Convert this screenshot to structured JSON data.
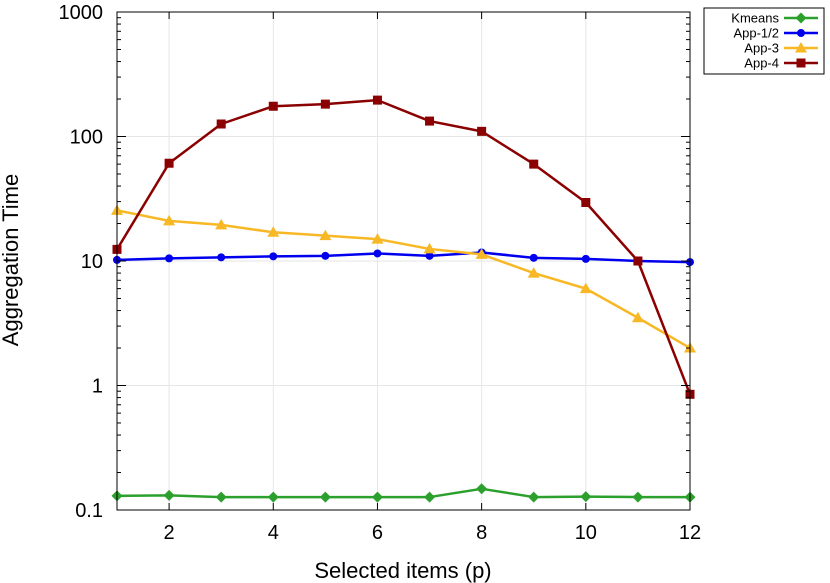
{
  "chart_data": {
    "type": "line",
    "title": "",
    "xlabel": "Selected items (p)",
    "ylabel": "Aggregation Time",
    "x": [
      1,
      2,
      3,
      4,
      5,
      6,
      7,
      8,
      9,
      10,
      11,
      12
    ],
    "xlim": [
      1,
      12
    ],
    "ylim": [
      0.1,
      1000
    ],
    "yscale": "log",
    "x_ticks": [
      2,
      4,
      6,
      8,
      10,
      12
    ],
    "x_tick_labels": [
      "2",
      "4",
      "6",
      "8",
      "10",
      "12"
    ],
    "y_ticks": [
      0.1,
      1,
      10,
      100,
      1000
    ],
    "y_tick_labels": [
      "0.1",
      "1",
      "10",
      "100",
      "1000"
    ],
    "grid": true,
    "legend_position": "top-right outside plot",
    "series": [
      {
        "name": "Kmeans",
        "color": "#2ca02c",
        "marker": "diamond",
        "values": [
          0.13,
          0.131,
          0.127,
          0.127,
          0.127,
          0.127,
          0.127,
          0.148,
          0.127,
          0.128,
          0.127,
          0.127
        ]
      },
      {
        "name": "App-1/2",
        "color": "#0000ee",
        "marker": "circle",
        "values": [
          10.2,
          10.5,
          10.7,
          10.9,
          11.0,
          11.5,
          11.0,
          11.7,
          10.6,
          10.4,
          10.0,
          9.8
        ]
      },
      {
        "name": "App-3",
        "color": "#f8b825",
        "marker": "triangle",
        "values": [
          25.5,
          21.0,
          19.5,
          17.0,
          16.0,
          15.0,
          12.5,
          11.3,
          8.0,
          6.0,
          3.5,
          2.0
        ]
      },
      {
        "name": "App-4",
        "color": "#8b0000",
        "marker": "square",
        "values": [
          12.4,
          61.0,
          126.0,
          175.0,
          182.0,
          196.0,
          133.0,
          110.0,
          60.0,
          29.5,
          10.0,
          0.85
        ]
      }
    ]
  }
}
